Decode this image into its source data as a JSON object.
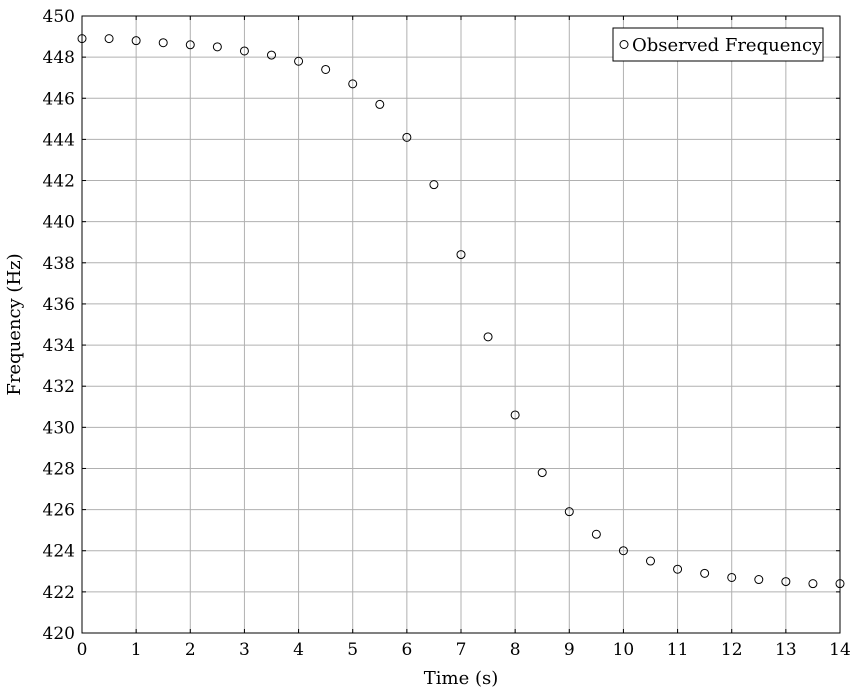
{
  "chart_data": {
    "type": "scatter",
    "title": "",
    "xlabel": "Time (s)",
    "ylabel": "Frequency (Hz)",
    "xlim": [
      0,
      14
    ],
    "ylim": [
      420,
      450
    ],
    "x_ticks": [
      0,
      1,
      2,
      3,
      4,
      5,
      6,
      7,
      8,
      9,
      10,
      11,
      12,
      13,
      14
    ],
    "y_ticks": [
      420,
      422,
      424,
      426,
      428,
      430,
      432,
      434,
      436,
      438,
      440,
      442,
      444,
      446,
      448,
      450
    ],
    "grid": true,
    "legend_position": "top-right",
    "marker": "open-circle",
    "series": [
      {
        "name": "Observed Frequency",
        "x": [
          0,
          0.5,
          1,
          1.5,
          2,
          2.5,
          3,
          3.5,
          4,
          4.5,
          5,
          5.5,
          6,
          6.5,
          7,
          7.5,
          8,
          8.5,
          9,
          9.5,
          10,
          10.5,
          11,
          11.5,
          12,
          12.5,
          13,
          13.5,
          14
        ],
        "y": [
          448.9,
          448.9,
          448.8,
          448.7,
          448.6,
          448.5,
          448.3,
          448.1,
          447.8,
          447.4,
          446.7,
          445.7,
          444.1,
          441.8,
          438.4,
          434.4,
          430.6,
          427.8,
          425.9,
          424.8,
          424.0,
          423.5,
          423.1,
          422.9,
          422.7,
          422.6,
          422.5,
          422.4,
          422.4
        ]
      }
    ]
  }
}
